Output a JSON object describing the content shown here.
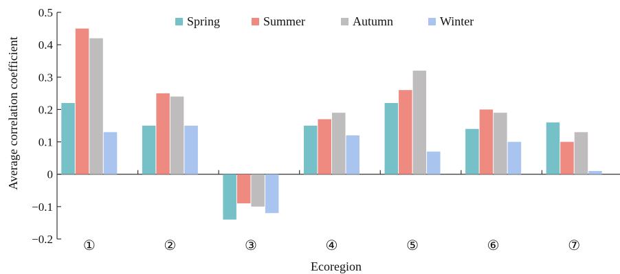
{
  "chart_data": {
    "type": "bar",
    "title": "",
    "xlabel": "Ecoregion",
    "ylabel": "Average correlation coefficient",
    "ylim": [
      -0.2,
      0.5
    ],
    "yticks": [
      -0.2,
      -0.1,
      0,
      0.1,
      0.2,
      0.3,
      0.4,
      0.5
    ],
    "ytick_labels": [
      "−0.2",
      "−0.1",
      "0",
      "0.1",
      "0.2",
      "0.3",
      "0.4",
      "0.5"
    ],
    "categories": [
      "①",
      "②",
      "③",
      "④",
      "⑤",
      "⑥",
      "⑦"
    ],
    "legend_position": "top-center",
    "grid": false,
    "series": [
      {
        "name": "Spring",
        "color": "#76c1c8",
        "values": [
          0.22,
          0.15,
          -0.14,
          0.15,
          0.22,
          0.14,
          0.16
        ]
      },
      {
        "name": "Summer",
        "color": "#ee8a80",
        "values": [
          0.45,
          0.25,
          -0.09,
          0.17,
          0.26,
          0.2,
          0.1
        ]
      },
      {
        "name": "Autumn",
        "color": "#bfbcbe",
        "values": [
          0.42,
          0.24,
          -0.1,
          0.19,
          0.32,
          0.19,
          0.13
        ]
      },
      {
        "name": "Winter",
        "color": "#a9c4ee",
        "values": [
          0.13,
          0.15,
          -0.12,
          0.12,
          0.07,
          0.1,
          0.01
        ]
      }
    ]
  }
}
